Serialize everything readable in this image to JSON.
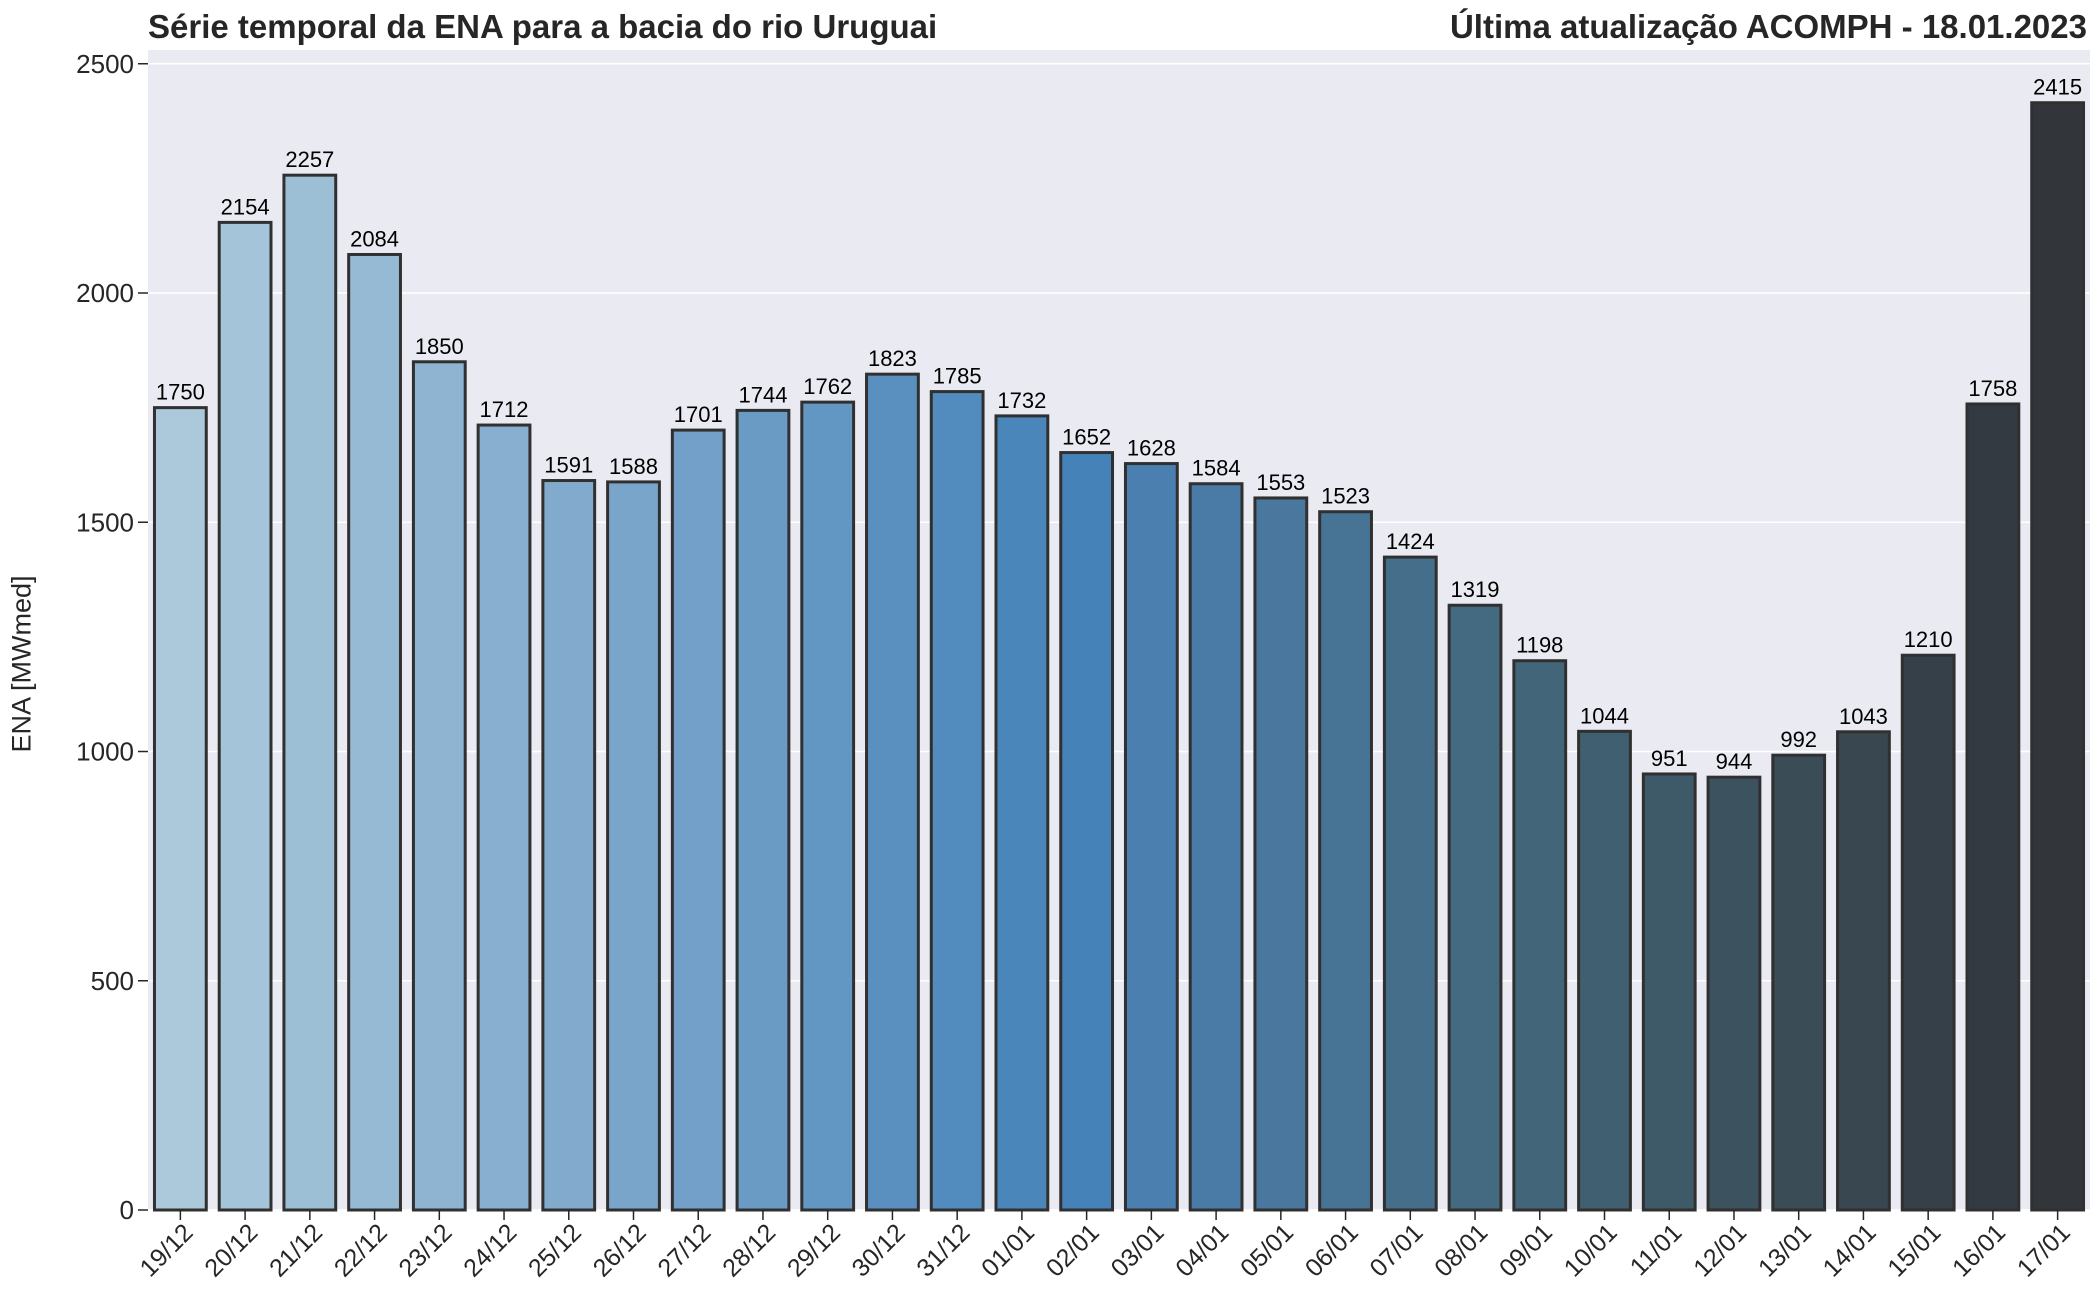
{
  "chart_data": {
    "type": "bar",
    "title": "Série temporal da ENA para a bacia do rio Uruguai",
    "subtitle": "Última atualização ACOMPH - 18.01.2023",
    "xlabel": "",
    "ylabel": "ENA [MWmed]",
    "ylim": [
      0,
      2530
    ],
    "yticks": [
      0,
      500,
      1000,
      1500,
      2000,
      2500
    ],
    "grid": "horizontal",
    "categories": [
      "19/12",
      "20/12",
      "21/12",
      "22/12",
      "23/12",
      "24/12",
      "25/12",
      "26/12",
      "27/12",
      "28/12",
      "29/12",
      "30/12",
      "31/12",
      "01/01",
      "02/01",
      "03/01",
      "04/01",
      "05/01",
      "06/01",
      "07/01",
      "08/01",
      "09/01",
      "10/01",
      "11/01",
      "12/01",
      "13/01",
      "14/01",
      "15/01",
      "16/01",
      "17/01"
    ],
    "values": [
      1750,
      2154,
      2257,
      2084,
      1850,
      1712,
      1591,
      1588,
      1701,
      1744,
      1762,
      1823,
      1785,
      1732,
      1652,
      1628,
      1584,
      1553,
      1523,
      1424,
      1319,
      1198,
      1044,
      951,
      944,
      992,
      1043,
      1210,
      1758,
      2415
    ],
    "colors": [
      "#acc9dc",
      "#a4c4d9",
      "#9dbfd6",
      "#96bad4",
      "#8fb4d2",
      "#88afcf",
      "#81aacc",
      "#79a5ca",
      "#72a0c8",
      "#6a9bc5",
      "#6296c3",
      "#5a90c0",
      "#528bbe",
      "#4b86bb",
      "#4582b8",
      "#4b7fb0",
      "#4a7ba6",
      "#49779e",
      "#477394",
      "#456e8a",
      "#446a81",
      "#426579",
      "#405f70",
      "#3e5967",
      "#3c535f",
      "#3a4d57",
      "#384750",
      "#364049",
      "#343a42",
      "#32363b"
    ],
    "background": "#eaeaf2",
    "edge_color": "#303030"
  }
}
